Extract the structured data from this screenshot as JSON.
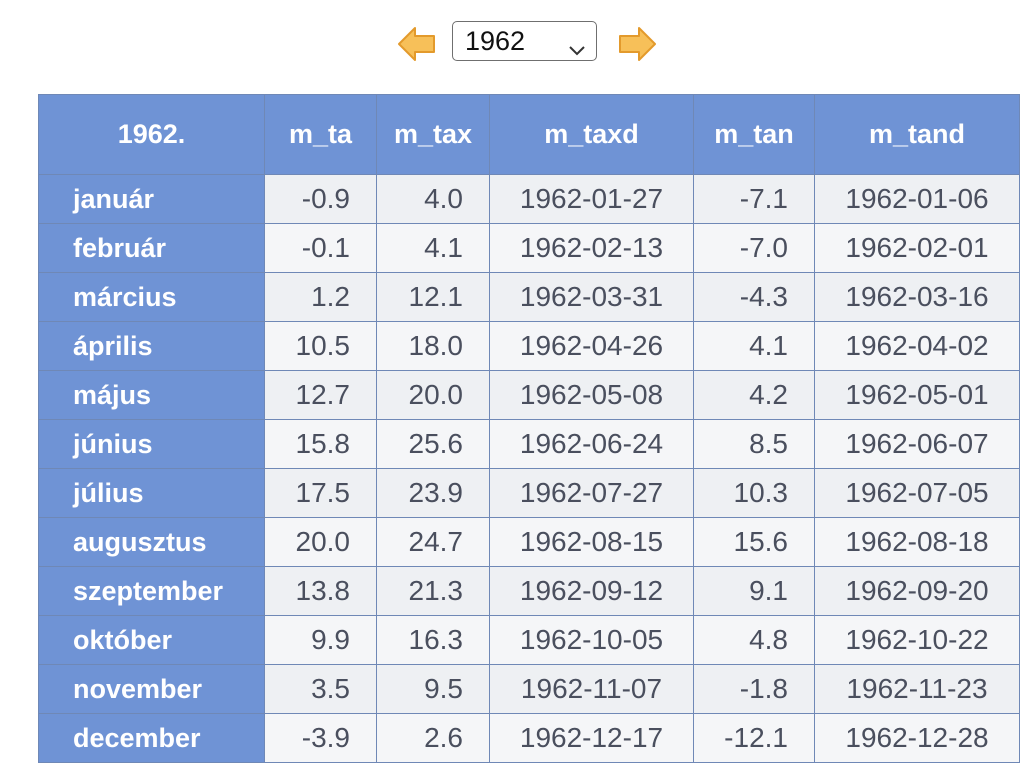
{
  "nav": {
    "selected_year": "1962",
    "prev_icon": "arrow-left-icon",
    "next_icon": "arrow-right-icon",
    "accent_color": "#f7c059"
  },
  "table": {
    "header": [
      "1962.",
      "m_ta",
      "m_tax",
      "m_taxd",
      "m_tan",
      "m_tand"
    ],
    "header_color": "#6f93d5",
    "rows": [
      {
        "month": "január",
        "m_ta": "-0.9",
        "m_tax": "4.0",
        "m_taxd": "1962-01-27",
        "m_tan": "-7.1",
        "m_tand": "1962-01-06"
      },
      {
        "month": "február",
        "m_ta": "-0.1",
        "m_tax": "4.1",
        "m_taxd": "1962-02-13",
        "m_tan": "-7.0",
        "m_tand": "1962-02-01"
      },
      {
        "month": "március",
        "m_ta": "1.2",
        "m_tax": "12.1",
        "m_taxd": "1962-03-31",
        "m_tan": "-4.3",
        "m_tand": "1962-03-16"
      },
      {
        "month": "április",
        "m_ta": "10.5",
        "m_tax": "18.0",
        "m_taxd": "1962-04-26",
        "m_tan": "4.1",
        "m_tand": "1962-04-02"
      },
      {
        "month": "május",
        "m_ta": "12.7",
        "m_tax": "20.0",
        "m_taxd": "1962-05-08",
        "m_tan": "4.2",
        "m_tand": "1962-05-01"
      },
      {
        "month": "június",
        "m_ta": "15.8",
        "m_tax": "25.6",
        "m_taxd": "1962-06-24",
        "m_tan": "8.5",
        "m_tand": "1962-06-07"
      },
      {
        "month": "július",
        "m_ta": "17.5",
        "m_tax": "23.9",
        "m_taxd": "1962-07-27",
        "m_tan": "10.3",
        "m_tand": "1962-07-05"
      },
      {
        "month": "augusztus",
        "m_ta": "20.0",
        "m_tax": "24.7",
        "m_taxd": "1962-08-15",
        "m_tan": "15.6",
        "m_tand": "1962-08-18"
      },
      {
        "month": "szeptember",
        "m_ta": "13.8",
        "m_tax": "21.3",
        "m_taxd": "1962-09-12",
        "m_tan": "9.1",
        "m_tand": "1962-09-20"
      },
      {
        "month": "október",
        "m_ta": "9.9",
        "m_tax": "16.3",
        "m_taxd": "1962-10-05",
        "m_tan": "4.8",
        "m_tand": "1962-10-22"
      },
      {
        "month": "november",
        "m_ta": "3.5",
        "m_tax": "9.5",
        "m_taxd": "1962-11-07",
        "m_tan": "-1.8",
        "m_tand": "1962-11-23"
      },
      {
        "month": "december",
        "m_ta": "-3.9",
        "m_tax": "2.6",
        "m_taxd": "1962-12-17",
        "m_tan": "-12.1",
        "m_tand": "1962-12-28"
      }
    ]
  }
}
